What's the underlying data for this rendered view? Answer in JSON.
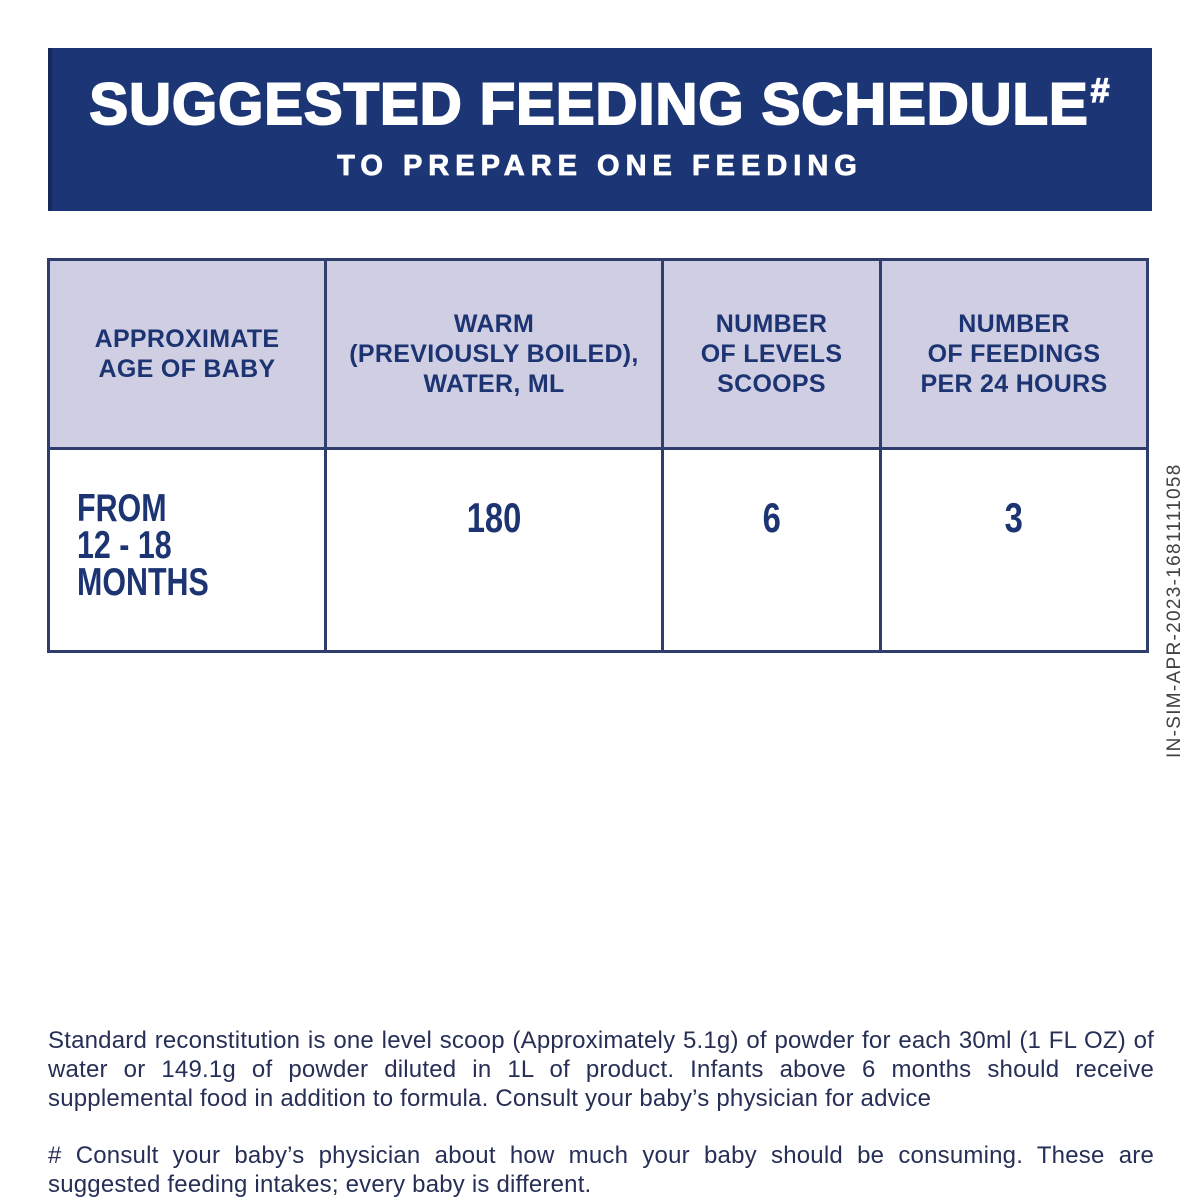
{
  "colors": {
    "banner_bg": "#1c3575",
    "table_border": "#2f3e6c",
    "header_bg": "#cfcee3",
    "navy_text": "#1d3473",
    "body_text": "#272f56",
    "code_text": "#414146"
  },
  "banner": {
    "title": "SUGGESTED FEEDING SCHEDULE",
    "title_mark": "#",
    "subtitle": "TO PREPARE ONE FEEDING"
  },
  "table": {
    "headers": [
      {
        "label": "APPROXIMATE AGE OF BABY",
        "lines": [
          "APPROXIMATE",
          "AGE OF BABY"
        ]
      },
      {
        "label": "WARM (PREVIOUSLY BOILED), WATER, ML",
        "lines": [
          "WARM",
          "(PREVIOUSLY BOILED),",
          "WATER, ML"
        ]
      },
      {
        "label": "NUMBER OF LEVELS SCOOPS",
        "lines": [
          "NUMBER",
          "OF LEVELS",
          "SCOOPS"
        ]
      },
      {
        "label": "NUMBER OF FEEDINGS PER 24 HOURS",
        "lines": [
          "NUMBER",
          "OF FEEDINGS",
          "PER 24 HOURS"
        ]
      }
    ],
    "row": {
      "age_lines": [
        "FROM",
        "12 - 18 MONTHS"
      ],
      "water_ml": "180",
      "scoops": "6",
      "feedings": "3"
    }
  },
  "side_code": "IN-SIM-APR-2023-1681111058",
  "footnotes": {
    "standard": "Standard reconstitution is one level scoop (Approximately 5.1g) of powder for each 30ml (1 FL OZ) of water or 149.1g of powder diluted in 1L of product. Infants above 6 months should receive supplemental food in addition to formula. Consult your baby’s physician for advice",
    "hash": "# Consult your baby’s physician about how much your baby should be consuming. These are suggested feeding intakes; every baby is different."
  }
}
